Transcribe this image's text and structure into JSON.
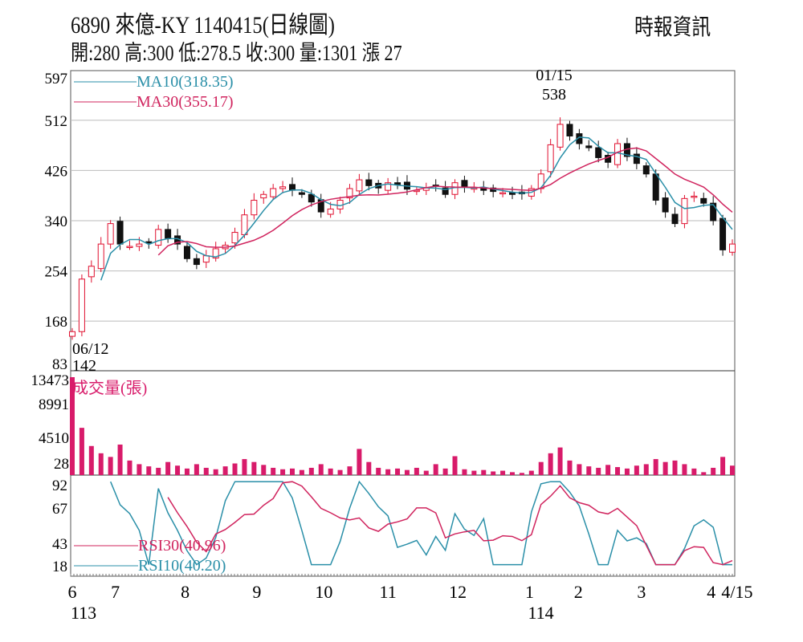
{
  "header": {
    "title": "6890  來億-KY 1140415(日線圖)",
    "source": "時報資訊",
    "ohlc": "開:280 高:300 低:278.5 收:300 量:1301 漲 27"
  },
  "chart_data": {
    "type": "candlestick",
    "price_axis": {
      "ticks": [
        "597",
        "512",
        "426",
        "340",
        "254",
        "168",
        "83"
      ],
      "range": [
        83,
        597
      ]
    },
    "volume_axis": {
      "ticks": [
        "13473",
        "8991",
        "4510",
        "28"
      ],
      "max": 13473,
      "label": "成交量(張)"
    },
    "rsi_axis": {
      "ticks": [
        "92",
        "67",
        "43",
        "18"
      ],
      "range": [
        18,
        92
      ]
    },
    "x_ticks": [
      {
        "label": "6",
        "pos": 0
      },
      {
        "label": "7",
        "pos": 4.5
      },
      {
        "label": "8",
        "pos": 11.8
      },
      {
        "label": "9",
        "pos": 19.3
      },
      {
        "label": "10",
        "pos": 26.3
      },
      {
        "label": "11",
        "pos": 33
      },
      {
        "label": "12",
        "pos": 40.3
      },
      {
        "label": "1",
        "pos": 47.8
      },
      {
        "label": "2",
        "pos": 52.9
      },
      {
        "label": "3",
        "pos": 59.5
      },
      {
        "label": "4",
        "pos": 66.8
      },
      {
        "label": "4/15",
        "pos": 69.5
      }
    ],
    "year_labels": [
      {
        "label": "113",
        "pos": 0
      },
      {
        "label": "114",
        "pos": 47.8
      }
    ],
    "legend": {
      "ma10": "MA10(318.35)",
      "ma30": "MA30(355.17)",
      "rsi30": "RSI30(40.96)",
      "rsi10": "RSI10(40.20)"
    },
    "annotations": {
      "high_date": "01/15",
      "high_value": "538",
      "low_date": "06/12",
      "low_value": "142"
    },
    "colors": {
      "up": "#e0102f",
      "down": "#111111",
      "ma10": "#2a8fa8",
      "ma30": "#d0245e",
      "volume": "#d81b6a",
      "grid": "#bbbbbb"
    },
    "closes": [
      150,
      240,
      262,
      300,
      335,
      300,
      296,
      300,
      302,
      325,
      310,
      300,
      275,
      265,
      280,
      292,
      298,
      320,
      350,
      375,
      385,
      395,
      398,
      392,
      385,
      372,
      355,
      360,
      375,
      395,
      410,
      400,
      396,
      405,
      402,
      394,
      392,
      397,
      400,
      385,
      405,
      398,
      396,
      392,
      390,
      388,
      385,
      386,
      395,
      420,
      470,
      505,
      485,
      472,
      465,
      448,
      440,
      472,
      450,
      438,
      420,
      375,
      355,
      335,
      378,
      382,
      370,
      340,
      290,
      300
    ],
    "volumes": [
      13473,
      6500,
      4000,
      3000,
      2500,
      4200,
      2000,
      1500,
      1200,
      1000,
      1800,
      1300,
      900,
      1500,
      1000,
      800,
      1200,
      1600,
      2200,
      1800,
      1400,
      1000,
      800,
      900,
      700,
      1000,
      1500,
      900,
      700,
      1200,
      3600,
      1800,
      1000,
      800,
      900,
      700,
      1000,
      600,
      1500,
      900,
      2600,
      800,
      600,
      700,
      500,
      600,
      400,
      300,
      600,
      1800,
      3000,
      3800,
      2000,
      1500,
      1200,
      1000,
      1400,
      1100,
      900,
      1300,
      1500,
      2200,
      1800,
      2000,
      1500,
      900,
      400,
      1000,
      2500,
      1301
    ]
  }
}
